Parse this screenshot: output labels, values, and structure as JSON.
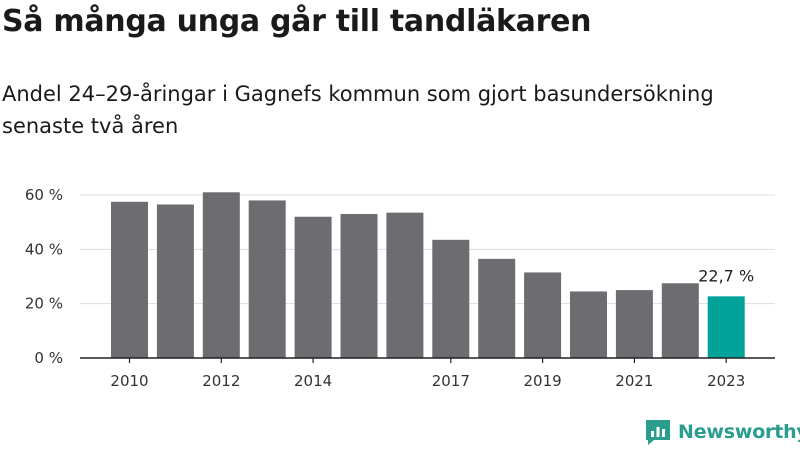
{
  "title": "Så många unga går till tandläkaren",
  "subtitle": "Andel 24–29-åringar i Gagnefs kommun som gjort basundersökning senaste två åren",
  "logo": {
    "text": "Newsworthy",
    "icon": "newsworthy-logo-icon"
  },
  "colors": {
    "bar": "#6d6c71",
    "highlight": "#00a29a",
    "axis": "#222222",
    "grid": "#dddddd",
    "brand": "#2a9d8f"
  },
  "chart_data": {
    "type": "bar",
    "title": "Så många unga går till tandläkaren",
    "xlabel": "",
    "ylabel": "",
    "ylim": [
      0,
      60
    ],
    "yticks": [
      0,
      20,
      40,
      60
    ],
    "ytick_labels": [
      "0 %",
      "20 %",
      "40 %",
      "60 %"
    ],
    "categories": [
      "2010",
      "2011",
      "2012",
      "2013",
      "2014",
      "2015",
      "2016",
      "2017",
      "2018",
      "2019",
      "2020",
      "2021",
      "2022",
      "2023"
    ],
    "xtick_labels": [
      "2010",
      "2012",
      "2014",
      "2017",
      "2019",
      "2021",
      "2023"
    ],
    "values": [
      57.5,
      56.5,
      61.0,
      58.0,
      52.0,
      53.0,
      53.5,
      43.5,
      36.5,
      31.5,
      24.5,
      25.0,
      27.5,
      22.7
    ],
    "highlight_index": 13,
    "data_labels": [
      {
        "index": 13,
        "text": "22,7 %"
      }
    ],
    "grid": true
  }
}
